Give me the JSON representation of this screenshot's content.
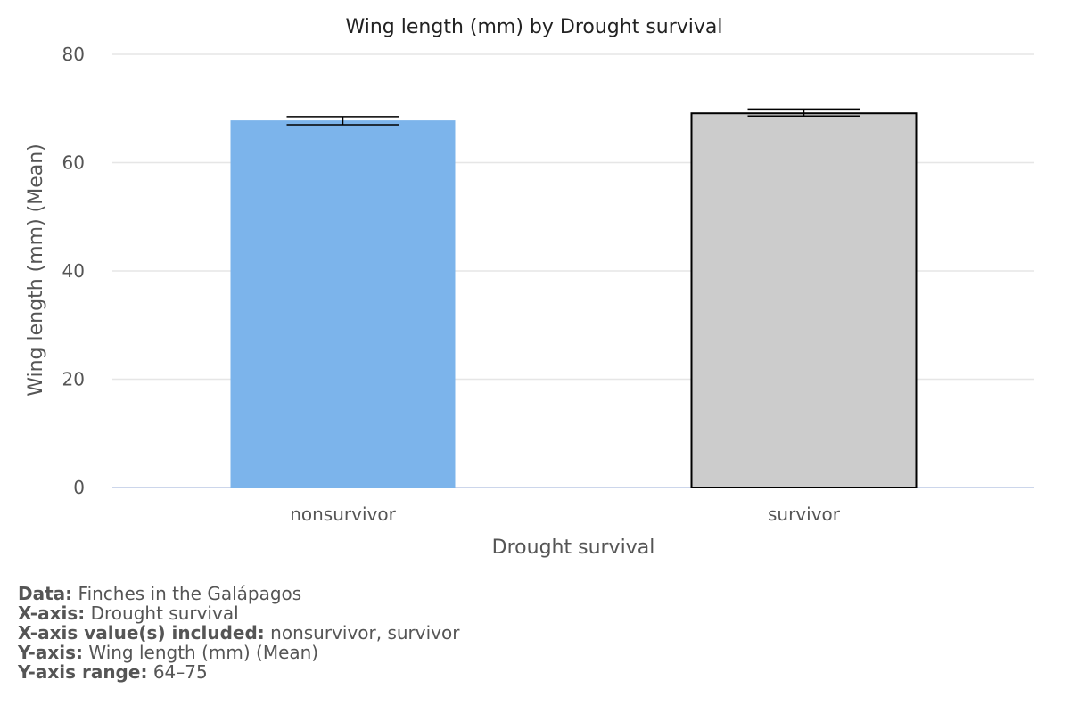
{
  "chart_data": {
    "type": "bar",
    "title": "Wing length (mm) by Drought survival",
    "xlabel": "Drought survival",
    "ylabel": "Wing length (mm) (Mean)",
    "categories": [
      "nonsurvivor",
      "survivor"
    ],
    "values": [
      67.8,
      69.1
    ],
    "error_low": [
      67.0,
      68.6
    ],
    "error_high": [
      68.5,
      69.9
    ],
    "bar_colors": [
      "#7cb4eb",
      "#cccccc"
    ],
    "bar_outline": [
      "none",
      "#000000"
    ],
    "ylim": [
      0,
      80
    ],
    "yticks": [
      0,
      20,
      40,
      60,
      80
    ],
    "grid": true
  },
  "footer": {
    "data_label": "Data:",
    "data_value": "Finches in the Galápagos",
    "xaxis_label": "X-axis:",
    "xaxis_value": "Drought survival",
    "xincl_label": "X-axis value(s) included:",
    "xincl_value": "nonsurvivor, survivor",
    "yaxis_label": "Y-axis:",
    "yaxis_value": "Wing length (mm) (Mean)",
    "yrange_label": "Y-axis range:",
    "yrange_value": "64–75"
  }
}
